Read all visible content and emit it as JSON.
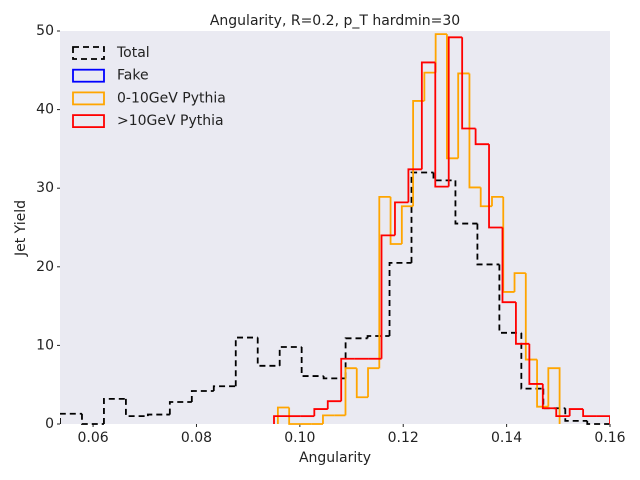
{
  "chart_data": {
    "type": "histogram",
    "title": "Angularity, R=0.2, p_T hardmin=30",
    "xlabel": "Angularity",
    "ylabel": "Jet Yield",
    "xlim": [
      0.0536,
      0.16
    ],
    "ylim": [
      0,
      50
    ],
    "xticks": [
      0.06,
      0.08,
      {
        "value": 0.1,
        "label": "0.10"
      },
      0.12,
      0.14,
      0.16
    ],
    "yticks": [
      0,
      10,
      20,
      30,
      40,
      50
    ],
    "grid": false,
    "legend": "upper left",
    "background": "#eaeaf2",
    "series": [
      {
        "name": "Total",
        "color": "#000000",
        "linestyle": "dashed",
        "bins": [
          0.0536,
          0.05785,
          0.0621,
          0.06635,
          0.0706,
          0.07485,
          0.0791,
          0.08335,
          0.0876,
          0.09185,
          0.0961,
          0.10035,
          0.1046,
          0.10885,
          0.1131,
          0.11735,
          0.1216,
          0.12585,
          0.1301,
          0.13435,
          0.1386,
          0.14285,
          0.1471,
          0.15135,
          0.1556,
          0.15985
        ],
        "values": [
          1.3,
          0,
          3.2,
          1.0,
          1.2,
          2.8,
          4.2,
          4.8,
          11.0,
          7.4,
          9.8,
          6.1,
          5.8,
          10.9,
          11.2,
          20.5,
          32.0,
          31.0,
          25.5,
          20.3,
          11.6,
          4.5,
          2.0,
          0.4,
          0.0
        ]
      },
      {
        "name": "Fake",
        "color": "#0000ff",
        "linestyle": "solid",
        "bins": [],
        "values": []
      },
      {
        "name": "0-10GeV Pythia",
        "color": "#ffa500",
        "linestyle": "solid",
        "bins": [
          0.09575,
          0.09793,
          0.10011,
          0.10229,
          0.10447,
          0.10665,
          0.10883,
          0.11101,
          0.11319,
          0.11537,
          0.11755,
          0.11973,
          0.12191,
          0.12409,
          0.12627,
          0.12845,
          0.13063,
          0.13281,
          0.13499,
          0.13717,
          0.13935,
          0.14153,
          0.14371,
          0.14589,
          0.14807,
          0.15025
        ],
        "values": [
          2.1,
          0,
          0,
          0,
          1.1,
          1.1,
          7.1,
          3.4,
          7.1,
          28.9,
          22.9,
          27.7,
          41.1,
          44.7,
          49.6,
          33.8,
          44.6,
          30.1,
          27.7,
          28.9,
          16.8,
          19.2,
          8.2,
          2.2,
          7.1
        ]
      },
      {
        "name": ">10GeV Pythia",
        "color": "#ff0000",
        "linestyle": "solid",
        "bins": [
          0.095,
          0.0976,
          0.1002,
          0.1028,
          0.1054,
          0.108,
          0.1106,
          0.1132,
          0.1158,
          0.1184,
          0.121,
          0.1236,
          0.1262,
          0.1288,
          0.1314,
          0.134,
          0.1366,
          0.1392,
          0.1418,
          0.1444,
          0.147,
          0.1496,
          0.1522,
          0.1548,
          0.1574,
          0.16
        ],
        "values": [
          1,
          1,
          1,
          1.9,
          2.9,
          8.3,
          8.3,
          8.3,
          24,
          28.2,
          32.4,
          46,
          30.2,
          49.2,
          37.6,
          35.6,
          25,
          15.5,
          10.2,
          5.1,
          2.0,
          1.0,
          1.9,
          1.0,
          1.0
        ]
      }
    ]
  }
}
